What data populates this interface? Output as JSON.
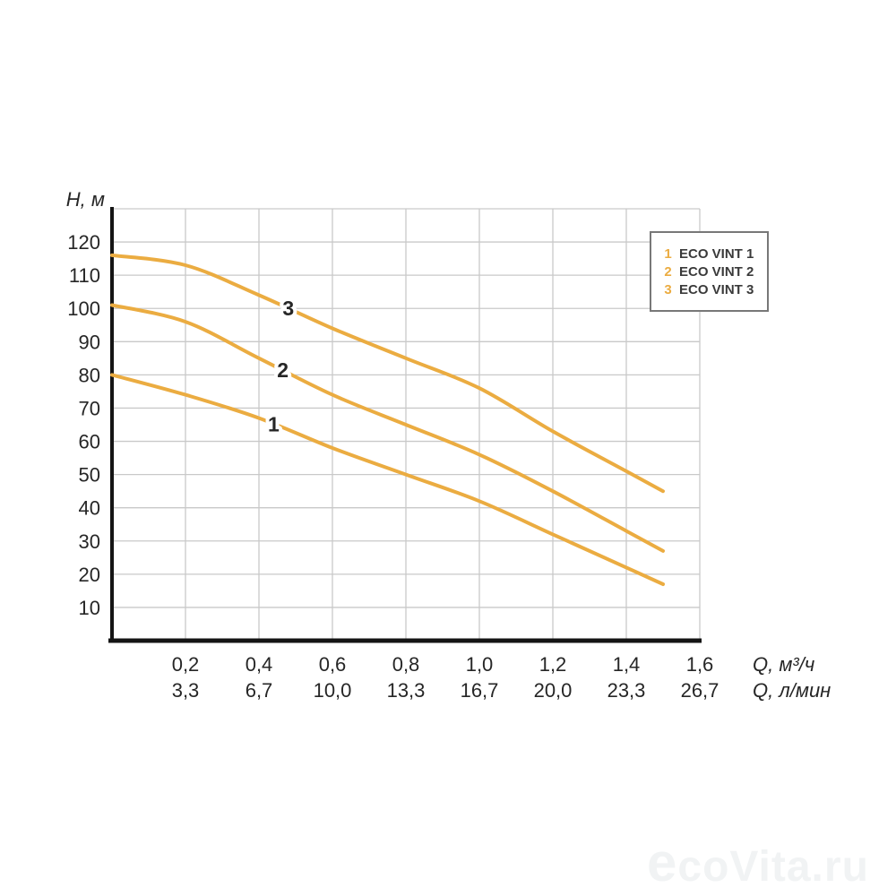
{
  "chart_data": {
    "type": "line",
    "title": "",
    "ylabel": "H, м",
    "xlabel_primary": "Q, м³/ч",
    "xlabel_secondary": "Q, л/мин",
    "xlim": [
      0,
      1.6
    ],
    "ylim": [
      0,
      130
    ],
    "grid": true,
    "legend_position": "top-right",
    "x": [
      0,
      0.2,
      0.4,
      0.6,
      0.8,
      1.0,
      1.2,
      1.4,
      1.5
    ],
    "series": [
      {
        "name": "ECO VINT 1",
        "curve_label": "1",
        "label_x": 0.44,
        "values": [
          80,
          74,
          67,
          58,
          50,
          42,
          32,
          22,
          17
        ]
      },
      {
        "name": "ECO VINT 2",
        "curve_label": "2",
        "label_x": 0.465,
        "values": [
          101,
          96,
          85,
          74,
          65,
          56,
          45,
          33,
          27
        ]
      },
      {
        "name": "ECO VINT 3",
        "curve_label": "3",
        "label_x": 0.48,
        "values": [
          116,
          113,
          104,
          94,
          85,
          76,
          63,
          51,
          45
        ]
      }
    ],
    "y_ticks": [
      120,
      110,
      100,
      90,
      80,
      70,
      60,
      50,
      40,
      30,
      20,
      10
    ],
    "x_ticks_primary": [
      "0,2",
      "0,4",
      "0,6",
      "0,8",
      "1,0",
      "1,2",
      "1,4",
      "1,6"
    ],
    "x_ticks_secondary": [
      "3,3",
      "6,7",
      "10,0",
      "13,3",
      "16,7",
      "20,0",
      "23,3",
      "26,7"
    ],
    "colors": {
      "line": "#EBAC41",
      "grid": "#C9C9C9",
      "axis": "#141414",
      "tick_text": "#262626",
      "legend_border": "#787878",
      "legend_text": "#3A3A3A",
      "watermark": "#F1F3F4"
    }
  },
  "legend": {
    "items": [
      {
        "num": "1",
        "label": "ECO VINT 1"
      },
      {
        "num": "2",
        "label": "ECO VINT 2"
      },
      {
        "num": "3",
        "label": "ECO VINT 3"
      }
    ]
  },
  "watermark": {
    "text": "ecoVita.ru"
  }
}
